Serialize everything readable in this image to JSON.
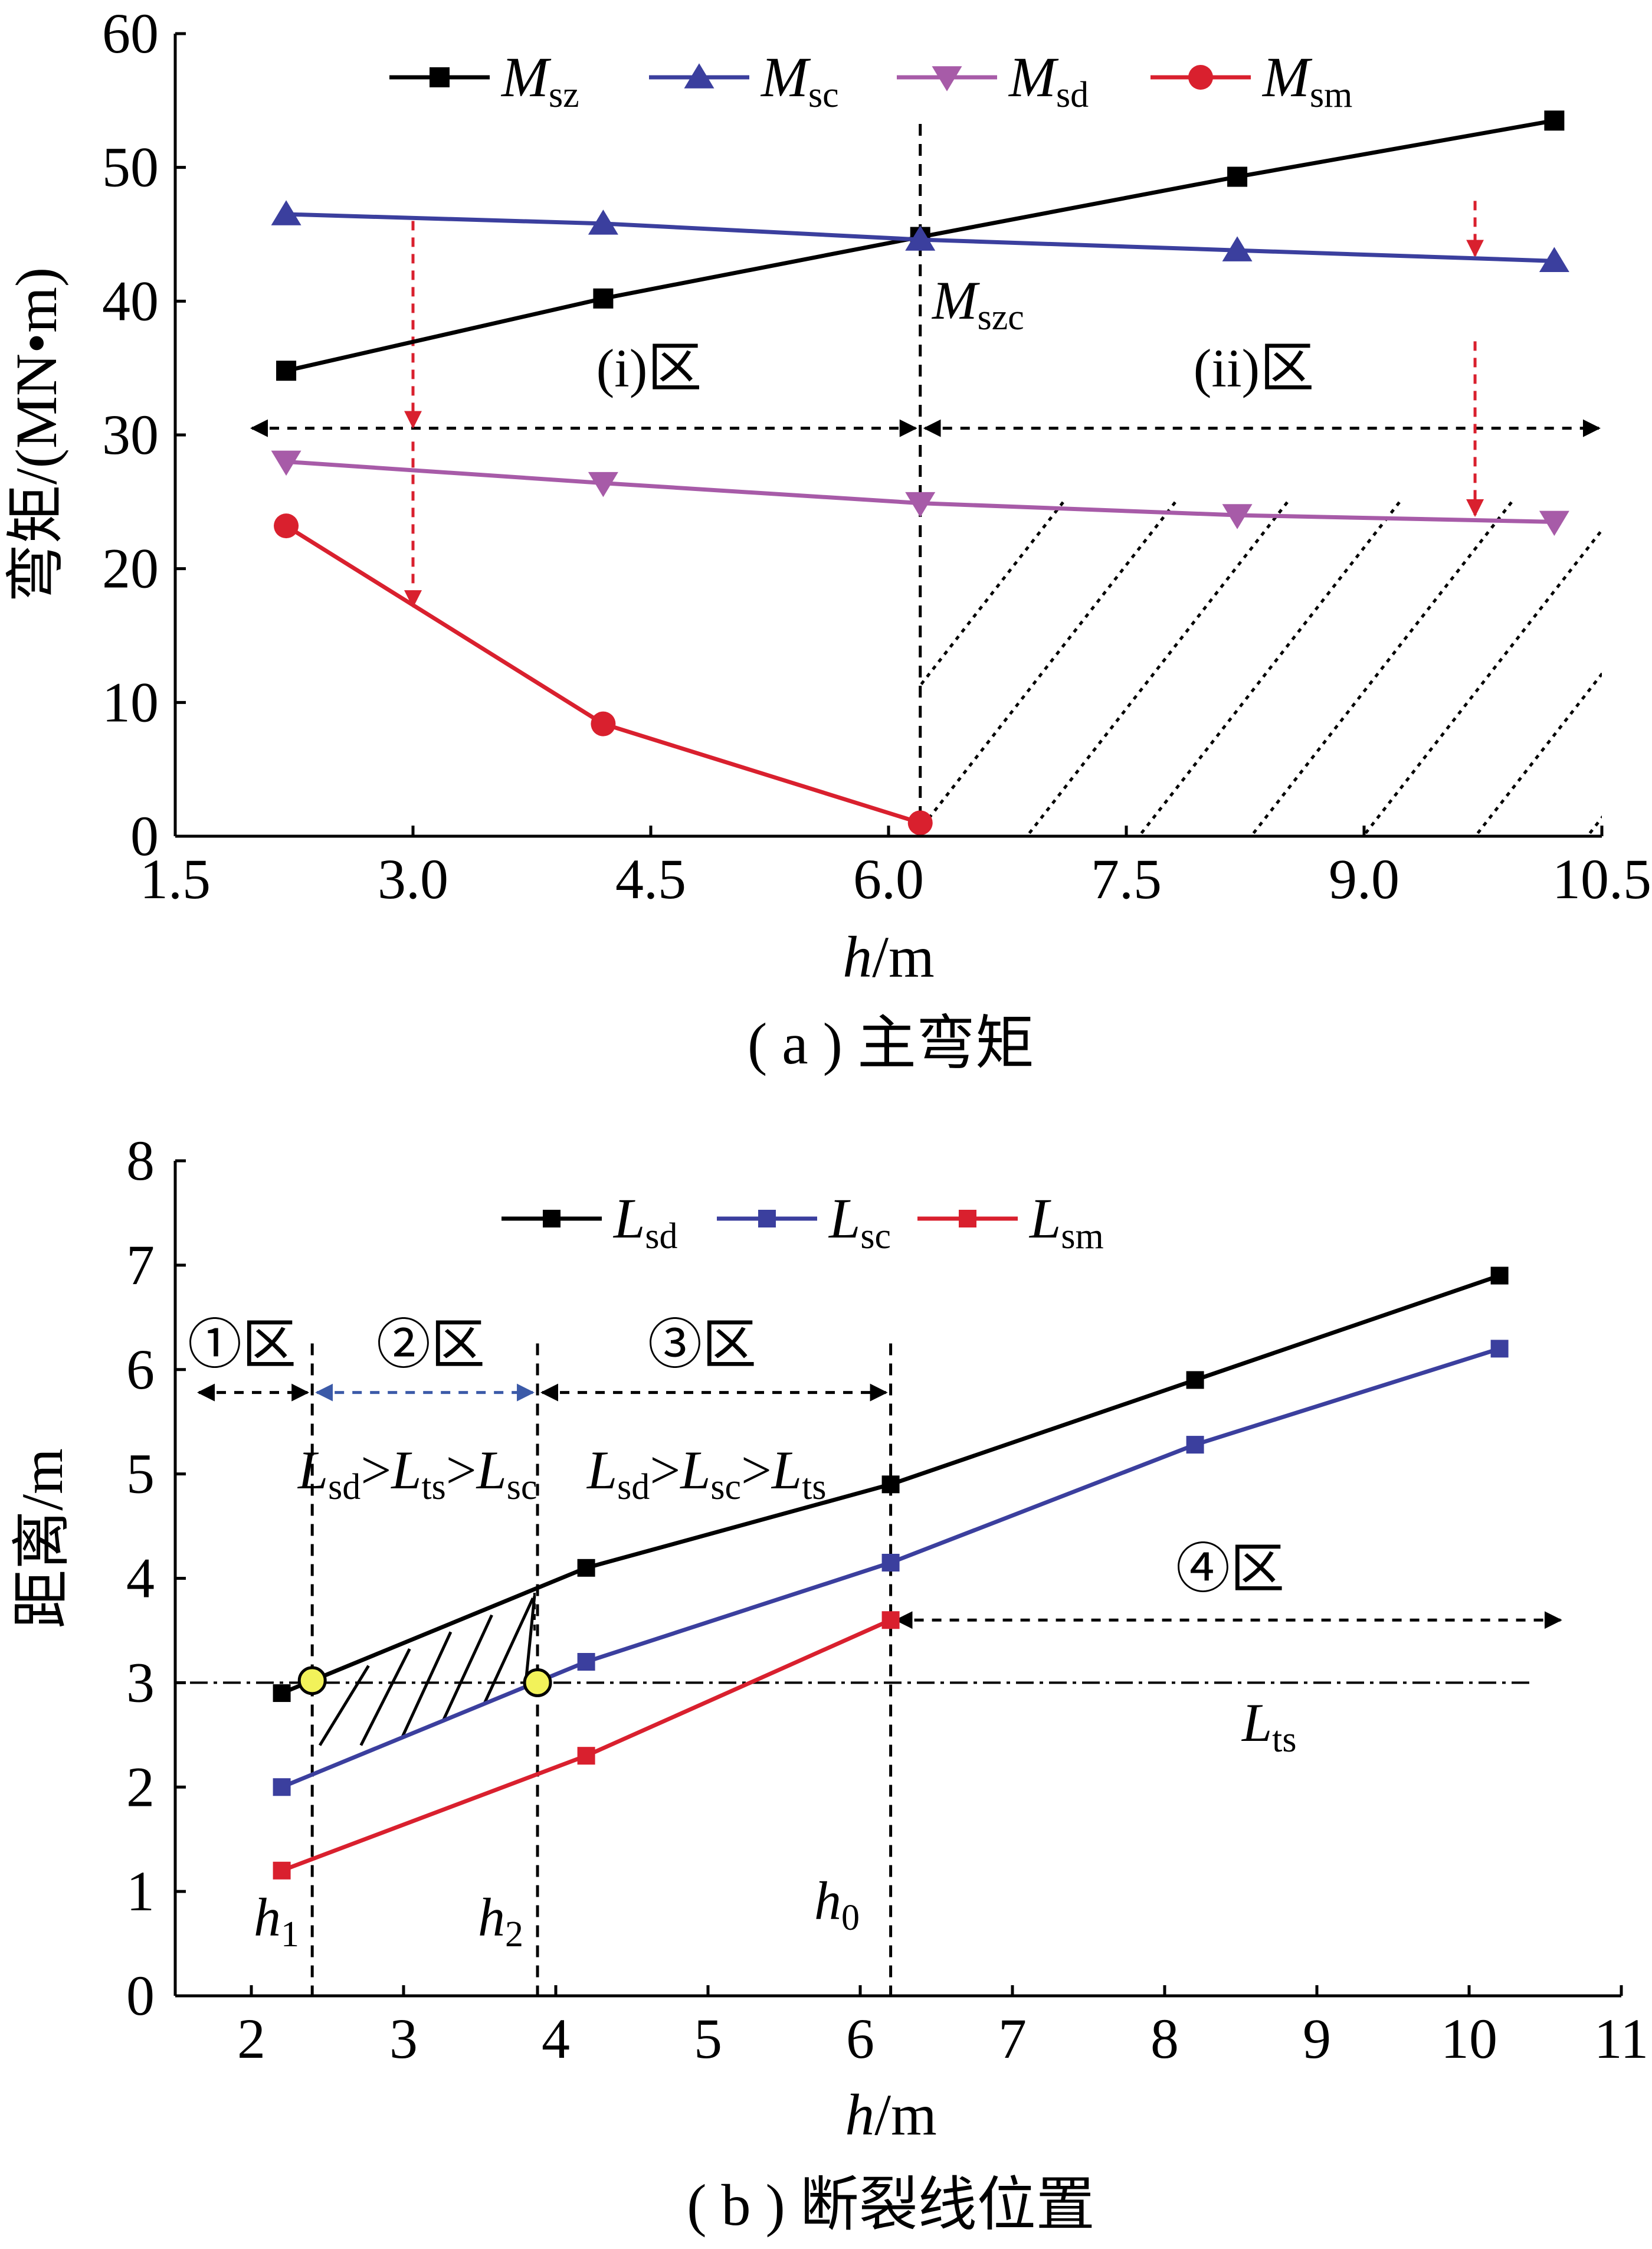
{
  "chart_data": [
    {
      "id": "a",
      "type": "line",
      "caption": "( a ) 主弯矩",
      "xlabel_italic": "h",
      "xlabel_unit": "/m",
      "ylabel": "弯矩/(MN•m)",
      "xlim": [
        1.5,
        10.5
      ],
      "ylim": [
        0,
        60
      ],
      "xticks": [
        "1.5",
        "3.0",
        "4.5",
        "6.0",
        "7.5",
        "9.0",
        "10.5"
      ],
      "yticks": [
        "0",
        "10",
        "20",
        "30",
        "40",
        "50",
        "60"
      ],
      "legend_position": "top",
      "series": [
        {
          "key": "Msz",
          "name_main": "M",
          "name_sub": "sz",
          "marker": "square",
          "color": "#000000",
          "x": [
            2.2,
            4.2,
            6.2,
            8.2,
            10.2
          ],
          "values": [
            34.8,
            40.2,
            44.8,
            49.3,
            53.5
          ]
        },
        {
          "key": "Msc",
          "name_main": "M",
          "name_sub": "sc",
          "marker": "triangle-up",
          "color": "#3b3f9e",
          "x": [
            2.2,
            4.2,
            6.2,
            8.2,
            10.2
          ],
          "values": [
            46.5,
            45.8,
            44.6,
            43.8,
            43.0
          ]
        },
        {
          "key": "Msd",
          "name_main": "M",
          "name_sub": "sd",
          "marker": "triangle-down",
          "color": "#a75ba8",
          "x": [
            2.2,
            4.2,
            6.2,
            8.2,
            10.2
          ],
          "values": [
            28.0,
            26.4,
            24.9,
            24.0,
            23.5
          ]
        },
        {
          "key": "Msm",
          "name_main": "M",
          "name_sub": "sm",
          "marker": "circle",
          "color": "#d9202e",
          "x": [
            2.2,
            4.2,
            6.2
          ],
          "values": [
            23.2,
            8.4,
            1.0
          ]
        }
      ],
      "annotations": {
        "critical_main": "M",
        "critical_sub": "szc",
        "region_i": "(i)区",
        "region_ii": "(ii)区"
      }
    },
    {
      "id": "b",
      "type": "line",
      "caption": "( b ) 断裂线位置",
      "xlabel_italic": "h",
      "xlabel_unit": "/m",
      "ylabel": "距离/m",
      "xlim": [
        1.5,
        11
      ],
      "ylim": [
        0,
        8
      ],
      "xticks": [
        "2",
        "3",
        "4",
        "5",
        "6",
        "7",
        "8",
        "9",
        "10",
        "11"
      ],
      "yticks": [
        "0",
        "1",
        "2",
        "3",
        "4",
        "5",
        "6",
        "7",
        "8"
      ],
      "legend_position": "top",
      "series": [
        {
          "key": "Lsd",
          "name_main": "L",
          "name_sub": "sd",
          "marker": "square",
          "color": "#000000",
          "x": [
            2.2,
            4.2,
            6.2,
            8.2,
            10.2
          ],
          "values": [
            2.9,
            4.1,
            4.9,
            5.9,
            6.9
          ]
        },
        {
          "key": "Lsc",
          "name_main": "L",
          "name_sub": "sc",
          "marker": "square",
          "color": "#3b3f9e",
          "x": [
            2.2,
            4.2,
            6.2,
            8.2,
            10.2
          ],
          "values": [
            2.0,
            3.2,
            4.15,
            5.28,
            6.2
          ]
        },
        {
          "key": "Lsm",
          "name_main": "L",
          "name_sub": "sm",
          "marker": "square",
          "color": "#d9202e",
          "x": [
            2.2,
            4.2,
            6.2
          ],
          "values": [
            1.2,
            2.3,
            3.6
          ]
        }
      ],
      "reference_line": {
        "main": "L",
        "sub": "ts",
        "value": 3.0
      },
      "annotations": {
        "zone1": "①区",
        "zone2": "②区",
        "zone3": "③区",
        "zone4": "④区",
        "ineq1": [
          {
            "m": "L",
            "s": "sd"
          },
          {
            "t": ">"
          },
          {
            "m": "L",
            "s": "ts"
          },
          {
            "t": ">"
          },
          {
            "m": "L",
            "s": "sc"
          }
        ],
        "ineq2": [
          {
            "m": "L",
            "s": "sd"
          },
          {
            "t": ">"
          },
          {
            "m": "L",
            "s": "sc"
          },
          {
            "t": ">"
          },
          {
            "m": "L",
            "s": "ts"
          }
        ],
        "h1_main": "h",
        "h1_sub": "1",
        "h1_x": 2.4,
        "h2_main": "h",
        "h2_sub": "2",
        "h2_x": 3.88,
        "h0_main": "h",
        "h0_sub": "0",
        "h0_x": 6.2,
        "intersections": [
          {
            "x": 2.4,
            "y": 3.02
          },
          {
            "x": 3.88,
            "y": 3.0
          }
        ]
      }
    }
  ]
}
